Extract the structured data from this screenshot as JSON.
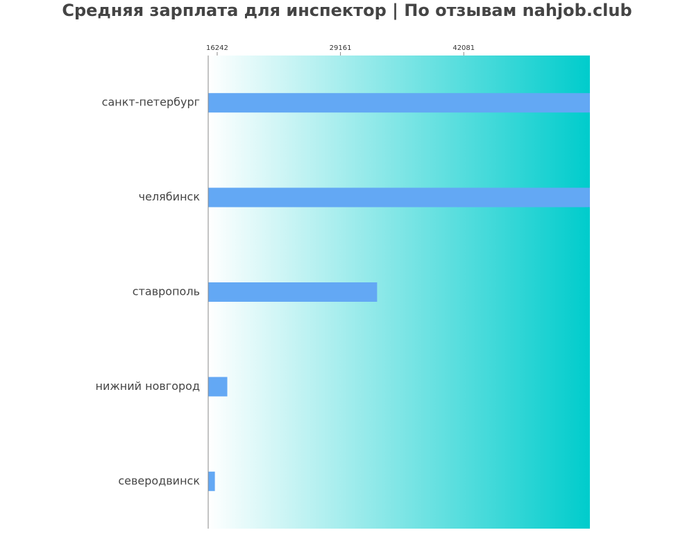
{
  "chart_data": {
    "type": "bar",
    "orientation": "horizontal",
    "title": "Средняя зарплата для инспектор | По отзывам nahjob.club",
    "categories": [
      "санкт-петербург",
      "челябинск",
      "ставрополь",
      "нижний новгород",
      "северодвинск"
    ],
    "values": [
      55500,
      55500,
      33000,
      17300,
      16000
    ],
    "x_ticks": [
      16242,
      29161,
      42081
    ],
    "xlim": [
      15300,
      55300
    ],
    "xlabel": "",
    "ylabel": "",
    "grid": false,
    "legend": "none",
    "colors": {
      "bar": "#63a8f4",
      "background_start": "#ffffff",
      "background_end": "#00cccc",
      "axis": "#888888",
      "title": "#444444",
      "label": "#444444"
    }
  }
}
